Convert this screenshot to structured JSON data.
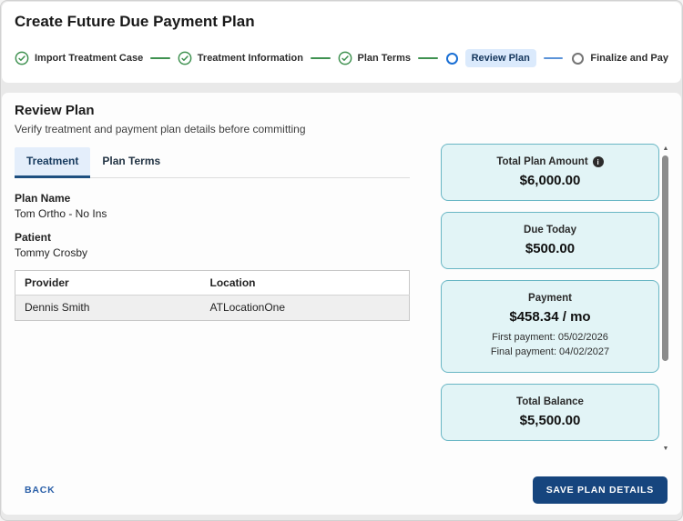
{
  "colors": {
    "complete_green": "#3f9150",
    "current_blue": "#1a6fd4",
    "connector_blue": "#5b93d8",
    "step_highlight_bg": "#dbeafc",
    "card_bg": "#e2f4f6",
    "card_border": "#68b6c4",
    "tab_active_bg": "#e4eefb",
    "tab_underline": "#1d4f80",
    "save_button_bg": "#16457e",
    "back_link": "#2a5fa8"
  },
  "header": {
    "title": "Create Future Due Payment Plan",
    "steps": [
      {
        "label": "Import Treatment Case",
        "state": "complete"
      },
      {
        "label": "Treatment Information",
        "state": "complete"
      },
      {
        "label": "Plan Terms",
        "state": "complete"
      },
      {
        "label": "Review Plan",
        "state": "current"
      },
      {
        "label": "Finalize and Pay",
        "state": "upcoming"
      }
    ]
  },
  "main": {
    "section_title": "Review Plan",
    "section_subtitle": "Verify treatment and payment plan details before committing",
    "tabs": [
      {
        "label": "Treatment",
        "active": true
      },
      {
        "label": "Plan Terms",
        "active": false
      }
    ],
    "fields": [
      {
        "label": "Plan Name",
        "value": "Tom Ortho - No Ins"
      },
      {
        "label": "Patient",
        "value": "Tommy Crosby"
      }
    ],
    "provider_table": {
      "columns": [
        "Provider",
        "Location"
      ],
      "rows": [
        [
          "Dennis Smith",
          "ATLocationOne"
        ]
      ]
    }
  },
  "summary_cards": [
    {
      "title": "Total Plan Amount",
      "has_info_icon": true,
      "amount": "$6,000.00",
      "details": []
    },
    {
      "title": "Due Today",
      "has_info_icon": false,
      "amount": "$500.00",
      "details": []
    },
    {
      "title": "Payment",
      "has_info_icon": false,
      "amount": "$458.34 / mo",
      "details": [
        "First payment: 05/02/2026",
        "Final payment: 04/02/2027"
      ]
    },
    {
      "title": "Total Balance",
      "has_info_icon": false,
      "amount": "$5,500.00",
      "details": []
    }
  ],
  "icons": {
    "info_glyph": "i",
    "scroll_up_glyph": "▲",
    "scroll_down_glyph": "▼"
  },
  "footer": {
    "back_label": "BACK",
    "save_label": "SAVE PLAN DETAILS"
  }
}
